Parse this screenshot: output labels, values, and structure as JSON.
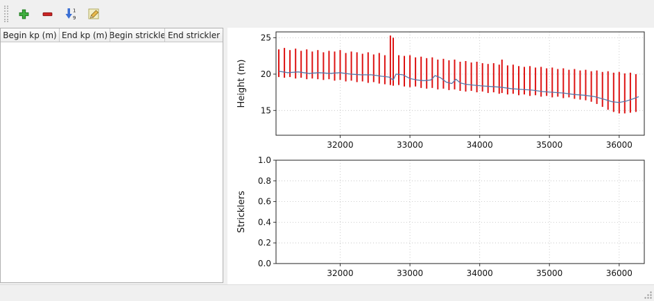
{
  "window": {
    "bg": "#f0f0f0",
    "panel_bg": "#ffffff"
  },
  "toolbar": {
    "buttons": [
      {
        "id": "add",
        "icon": "plus-icon"
      },
      {
        "id": "remove",
        "icon": "minus-icon"
      },
      {
        "id": "sort",
        "icon": "sort-numeric-icon",
        "sort_top": "1",
        "sort_bottom": "9"
      },
      {
        "id": "edit",
        "icon": "pencil-icon"
      }
    ]
  },
  "table": {
    "columns": [
      "Begin kp (m)",
      "End kp (m)",
      "Begin strickle",
      "End strickler"
    ],
    "rows": []
  },
  "chart_data": [
    {
      "type": "line",
      "title": "",
      "xlabel": "",
      "ylabel": "Height (m)",
      "xlim": [
        31080,
        36360
      ],
      "ylim": [
        11.6,
        25.8
      ],
      "xticks": [
        32000,
        33000,
        34000,
        35000,
        36000
      ],
      "xtick_labels": [
        "32000",
        "33000",
        "34000",
        "35000",
        "36000"
      ],
      "yticks": [
        15,
        20,
        25
      ],
      "ytick_labels": [
        "15",
        "20",
        "25"
      ],
      "grid": true,
      "legend": "none",
      "colors": {
        "range": "#dd1111",
        "line": "#5578aa"
      },
      "series": [
        {
          "name": "height_range",
          "type": "errorbar",
          "color": "#dd1111",
          "width": 2,
          "points": [
            [
              31120,
              19.6,
              23.4
            ],
            [
              31200,
              19.5,
              23.6
            ],
            [
              31280,
              19.6,
              23.3
            ],
            [
              31360,
              19.4,
              23.5
            ],
            [
              31440,
              19.5,
              23.2
            ],
            [
              31520,
              19.3,
              23.4
            ],
            [
              31600,
              19.4,
              23.1
            ],
            [
              31680,
              19.3,
              23.3
            ],
            [
              31760,
              19.2,
              23.0
            ],
            [
              31840,
              19.3,
              23.2
            ],
            [
              31920,
              19.1,
              23.1
            ],
            [
              32000,
              19.2,
              23.3
            ],
            [
              32080,
              19.0,
              22.9
            ],
            [
              32160,
              19.1,
              23.1
            ],
            [
              32240,
              18.9,
              23.0
            ],
            [
              32320,
              19.0,
              22.8
            ],
            [
              32400,
              18.8,
              23.0
            ],
            [
              32480,
              18.9,
              22.7
            ],
            [
              32560,
              18.7,
              22.9
            ],
            [
              32640,
              18.6,
              22.6
            ],
            [
              32720,
              18.5,
              25.3
            ],
            [
              32760,
              18.4,
              25.0
            ],
            [
              32840,
              18.5,
              22.6
            ],
            [
              32920,
              18.3,
              22.5
            ],
            [
              33000,
              18.2,
              22.6
            ],
            [
              33080,
              18.3,
              22.3
            ],
            [
              33160,
              18.1,
              22.4
            ],
            [
              33240,
              18.0,
              22.2
            ],
            [
              33320,
              18.1,
              22.3
            ],
            [
              33400,
              17.9,
              22.0
            ],
            [
              33480,
              18.0,
              22.1
            ],
            [
              33560,
              17.8,
              21.9
            ],
            [
              33640,
              17.9,
              22.0
            ],
            [
              33720,
              17.7,
              21.7
            ],
            [
              33800,
              17.6,
              21.8
            ],
            [
              33880,
              17.7,
              21.6
            ],
            [
              33960,
              17.5,
              21.7
            ],
            [
              34040,
              17.6,
              21.5
            ],
            [
              34120,
              17.4,
              21.4
            ],
            [
              34200,
              17.5,
              21.5
            ],
            [
              34280,
              17.3,
              21.3
            ],
            [
              34320,
              17.4,
              22.0
            ],
            [
              34400,
              17.2,
              21.2
            ],
            [
              34480,
              17.3,
              21.3
            ],
            [
              34560,
              17.1,
              21.1
            ],
            [
              34640,
              17.2,
              21.0
            ],
            [
              34720,
              17.0,
              21.1
            ],
            [
              34800,
              17.1,
              20.9
            ],
            [
              34880,
              16.9,
              21.0
            ],
            [
              34960,
              17.0,
              20.8
            ],
            [
              35040,
              16.8,
              20.9
            ],
            [
              35120,
              16.9,
              20.7
            ],
            [
              35200,
              16.7,
              20.8
            ],
            [
              35280,
              16.8,
              20.6
            ],
            [
              35360,
              16.6,
              20.7
            ],
            [
              35440,
              16.5,
              20.5
            ],
            [
              35520,
              16.4,
              20.6
            ],
            [
              35600,
              16.2,
              20.4
            ],
            [
              35680,
              15.9,
              20.5
            ],
            [
              35760,
              15.5,
              20.3
            ],
            [
              35840,
              15.1,
              20.4
            ],
            [
              35920,
              14.8,
              20.2
            ],
            [
              36000,
              14.6,
              20.3
            ],
            [
              36080,
              14.6,
              20.1
            ],
            [
              36160,
              14.7,
              20.2
            ],
            [
              36240,
              14.8,
              20.0
            ]
          ]
        },
        {
          "name": "height_line",
          "type": "line",
          "color": "#5578aa",
          "width": 1.3,
          "points": [
            [
              31120,
              20.4
            ],
            [
              31250,
              20.2
            ],
            [
              31400,
              20.3
            ],
            [
              31550,
              20.1
            ],
            [
              31700,
              20.2
            ],
            [
              31850,
              20.1
            ],
            [
              32000,
              20.2
            ],
            [
              32150,
              20.0
            ],
            [
              32300,
              19.9
            ],
            [
              32450,
              19.9
            ],
            [
              32600,
              19.7
            ],
            [
              32700,
              19.6
            ],
            [
              32760,
              19.2
            ],
            [
              32800,
              20.0
            ],
            [
              32900,
              19.9
            ],
            [
              33000,
              19.4
            ],
            [
              33100,
              19.2
            ],
            [
              33200,
              19.1
            ],
            [
              33300,
              19.2
            ],
            [
              33360,
              19.8
            ],
            [
              33440,
              19.5
            ],
            [
              33520,
              18.9
            ],
            [
              33600,
              18.7
            ],
            [
              33660,
              19.3
            ],
            [
              33720,
              18.8
            ],
            [
              33800,
              18.6
            ],
            [
              33900,
              18.5
            ],
            [
              34000,
              18.4
            ],
            [
              34150,
              18.3
            ],
            [
              34300,
              18.2
            ],
            [
              34450,
              18.0
            ],
            [
              34600,
              17.9
            ],
            [
              34750,
              17.8
            ],
            [
              34900,
              17.6
            ],
            [
              35050,
              17.5
            ],
            [
              35200,
              17.4
            ],
            [
              35350,
              17.2
            ],
            [
              35500,
              17.1
            ],
            [
              35650,
              16.9
            ],
            [
              35800,
              16.5
            ],
            [
              35900,
              16.2
            ],
            [
              36000,
              16.1
            ],
            [
              36100,
              16.3
            ],
            [
              36200,
              16.6
            ],
            [
              36280,
              16.9
            ]
          ]
        }
      ]
    },
    {
      "type": "line",
      "title": "",
      "xlabel": "",
      "ylabel": "Stricklers",
      "xlim": [
        31080,
        36360
      ],
      "ylim": [
        0,
        1
      ],
      "xticks": [
        32000,
        33000,
        34000,
        35000,
        36000
      ],
      "xtick_labels": [
        "32000",
        "33000",
        "34000",
        "35000",
        "36000"
      ],
      "yticks": [
        0,
        0.2,
        0.4,
        0.6,
        0.8,
        1.0
      ],
      "ytick_labels": [
        "0.0",
        "0.2",
        "0.4",
        "0.6",
        "0.8",
        "1.0"
      ],
      "grid": true,
      "legend": "none",
      "series": []
    }
  ]
}
